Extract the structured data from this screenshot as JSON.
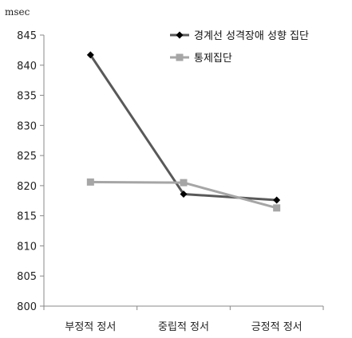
{
  "chart_data": {
    "type": "line",
    "ylabel": "msec",
    "ylim": [
      800,
      845
    ],
    "yticks": [
      800,
      805,
      810,
      815,
      820,
      825,
      830,
      835,
      840,
      845
    ],
    "categories": [
      "부정적 정서",
      "중립적 정서",
      "긍정적 정서"
    ],
    "legend_position": "top-right",
    "grid": false,
    "series": [
      {
        "name": "경계선 성격장애 성향 집단",
        "values": [
          841.7,
          818.6,
          817.6
        ],
        "color": "#595959",
        "marker": "diamond",
        "marker_color": "#000000"
      },
      {
        "name": "통제집단",
        "values": [
          820.6,
          820.5,
          816.3
        ],
        "color": "#a6a6a6",
        "marker": "square",
        "marker_color": "#a6a6a6"
      }
    ]
  }
}
